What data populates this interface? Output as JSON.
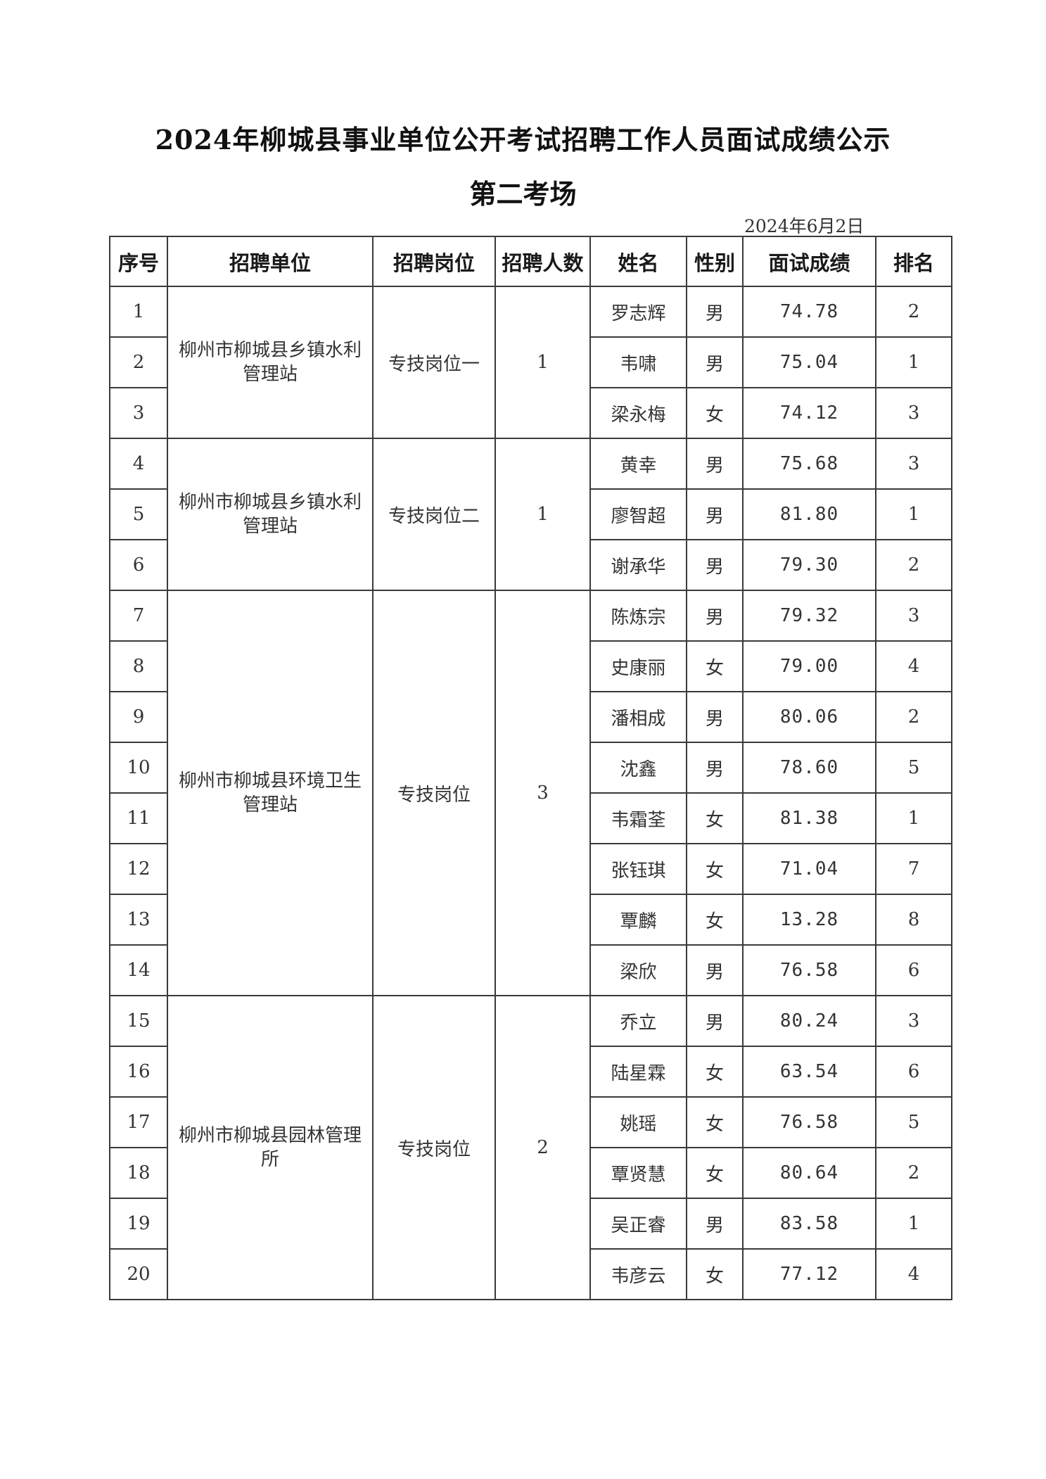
{
  "title": "2024年柳城县事业单位公开考试招聘工作人员面试成绩公示",
  "subtitle": "第二考场",
  "date": "2024年6月2日",
  "table": {
    "headers": [
      "序号",
      "招聘单位",
      "招聘岗位",
      "招聘人数",
      "姓名",
      "性别",
      "面试成绩",
      "排名"
    ],
    "groups": [
      {
        "unit": "柳州市柳城县乡镇水利管理站",
        "position": "专技岗位一",
        "count": "1",
        "rows": [
          {
            "no": "1",
            "name": "罗志辉",
            "gender": "男",
            "score": "74.78",
            "rank": "2"
          },
          {
            "no": "2",
            "name": "韦啸",
            "gender": "男",
            "score": "75.04",
            "rank": "1"
          },
          {
            "no": "3",
            "name": "梁永梅",
            "gender": "女",
            "score": "74.12",
            "rank": "3"
          }
        ]
      },
      {
        "unit": "柳州市柳城县乡镇水利管理站",
        "position": "专技岗位二",
        "count": "1",
        "rows": [
          {
            "no": "4",
            "name": "黄幸",
            "gender": "男",
            "score": "75.68",
            "rank": "3"
          },
          {
            "no": "5",
            "name": "廖智超",
            "gender": "男",
            "score": "81.80",
            "rank": "1"
          },
          {
            "no": "6",
            "name": "谢承华",
            "gender": "男",
            "score": "79.30",
            "rank": "2"
          }
        ]
      },
      {
        "unit": "柳州市柳城县环境卫生管理站",
        "position": "专技岗位",
        "count": "3",
        "rows": [
          {
            "no": "7",
            "name": "陈炼宗",
            "gender": "男",
            "score": "79.32",
            "rank": "3"
          },
          {
            "no": "8",
            "name": "史康丽",
            "gender": "女",
            "score": "79.00",
            "rank": "4"
          },
          {
            "no": "9",
            "name": "潘相成",
            "gender": "男",
            "score": "80.06",
            "rank": "2"
          },
          {
            "no": "10",
            "name": "沈鑫",
            "gender": "男",
            "score": "78.60",
            "rank": "5"
          },
          {
            "no": "11",
            "name": "韦霜荃",
            "gender": "女",
            "score": "81.38",
            "rank": "1"
          },
          {
            "no": "12",
            "name": "张钰琪",
            "gender": "女",
            "score": "71.04",
            "rank": "7"
          },
          {
            "no": "13",
            "name": "覃麟",
            "gender": "女",
            "score": "13.28",
            "rank": "8"
          },
          {
            "no": "14",
            "name": "梁欣",
            "gender": "男",
            "score": "76.58",
            "rank": "6"
          }
        ]
      },
      {
        "unit": "柳州市柳城县园林管理所",
        "position": "专技岗位",
        "count": "2",
        "rows": [
          {
            "no": "15",
            "name": "乔立",
            "gender": "男",
            "score": "80.24",
            "rank": "3"
          },
          {
            "no": "16",
            "name": "陆星霖",
            "gender": "女",
            "score": "63.54",
            "rank": "6"
          },
          {
            "no": "17",
            "name": "姚瑶",
            "gender": "女",
            "score": "76.58",
            "rank": "5"
          },
          {
            "no": "18",
            "name": "覃贤慧",
            "gender": "女",
            "score": "80.64",
            "rank": "2"
          },
          {
            "no": "19",
            "name": "吴正睿",
            "gender": "男",
            "score": "83.58",
            "rank": "1"
          },
          {
            "no": "20",
            "name": "韦彦云",
            "gender": "女",
            "score": "77.12",
            "rank": "4"
          }
        ]
      }
    ]
  }
}
